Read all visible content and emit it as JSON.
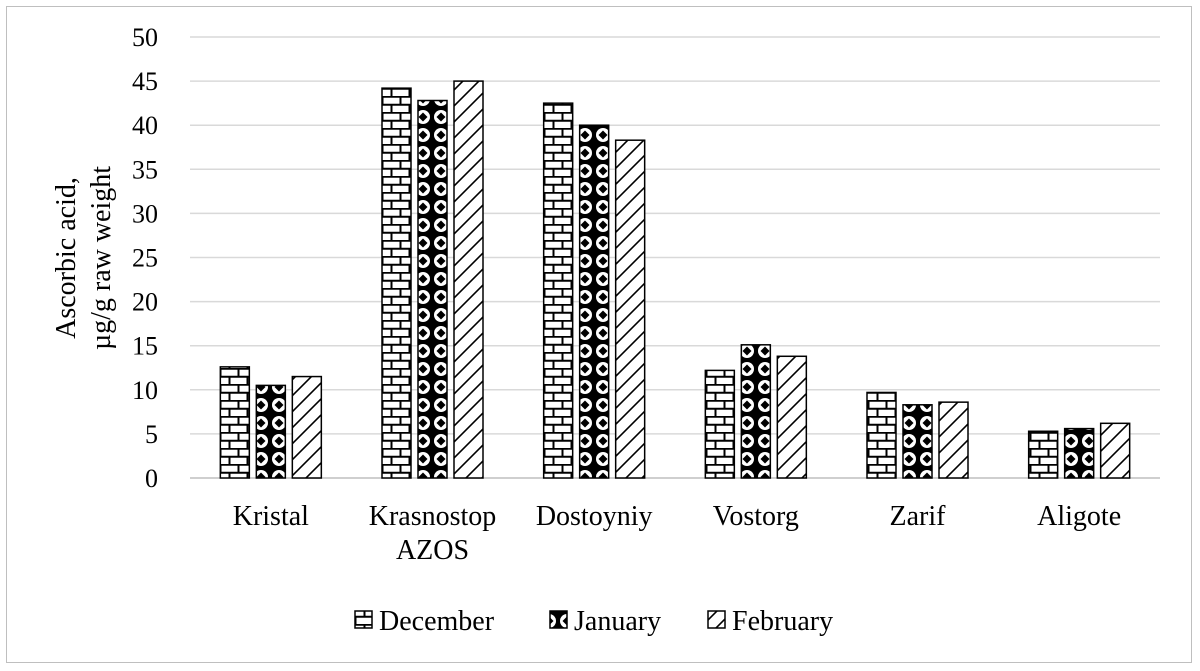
{
  "chart_data": {
    "type": "bar",
    "ylabel_lines": [
      "Ascorbic acid,",
      "µg/g raw weight"
    ],
    "categories": [
      [
        "Kristal"
      ],
      [
        "Krasnostop",
        "AZOS"
      ],
      [
        "Dostoyniy"
      ],
      [
        "Vostorg"
      ],
      [
        "Zarif"
      ],
      [
        "Aligote"
      ]
    ],
    "series": [
      {
        "name": "December",
        "pattern": "brick",
        "values": [
          12.6,
          44.2,
          42.5,
          12.2,
          9.7,
          5.3
        ]
      },
      {
        "name": "January",
        "pattern": "diamond",
        "values": [
          10.5,
          42.8,
          40.0,
          15.1,
          8.3,
          5.6
        ]
      },
      {
        "name": "February",
        "pattern": "diagonal",
        "values": [
          11.5,
          45.0,
          38.3,
          13.8,
          8.6,
          6.2
        ]
      }
    ],
    "ylim": [
      0,
      50
    ],
    "yticks": [
      0,
      5,
      10,
      15,
      20,
      25,
      30,
      35,
      40,
      45,
      50
    ],
    "grid": true,
    "legend_position": "bottom"
  }
}
